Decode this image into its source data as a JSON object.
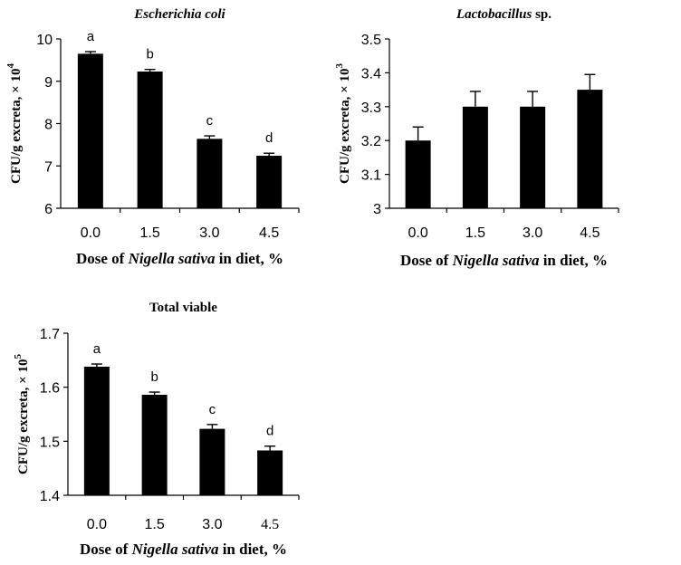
{
  "chart_data": [
    {
      "type": "bar",
      "title": {
        "italic": "Escherichia coli",
        "rest": ""
      },
      "ylabel": "CFU/g excreta, × 10",
      "ylabel_exp": "4",
      "xlabel": {
        "before": "Dose of ",
        "italic": "Nigella sativa",
        "after": " in diet, %"
      },
      "categories": [
        "0.0",
        "1.5",
        "3.0",
        "4.5"
      ],
      "values": [
        9.65,
        9.23,
        7.64,
        7.24
      ],
      "errors": [
        0.05,
        0.05,
        0.07,
        0.06
      ],
      "sig_letters": [
        "a",
        "b",
        "c",
        "d"
      ],
      "ylim": [
        6,
        10
      ],
      "yticks": [
        "6",
        "7",
        "8",
        "9",
        "10"
      ],
      "ytick_values": [
        6,
        7,
        8,
        9,
        10
      ]
    },
    {
      "type": "bar",
      "title": {
        "italic": "Lactobacillus",
        "rest": " sp."
      },
      "ylabel": "CFU/g excreta, × 10",
      "ylabel_exp": "3",
      "xlabel": {
        "before": "Dose of ",
        "italic": "Nigella sativa",
        "after": " in diet, %"
      },
      "categories": [
        "0.0",
        "1.5",
        "3.0",
        "4.5"
      ],
      "values": [
        3.2,
        3.3,
        3.3,
        3.35
      ],
      "errors": [
        0.04,
        0.045,
        0.045,
        0.045
      ],
      "sig_letters": [],
      "ylim": [
        3,
        3.5
      ],
      "yticks": [
        "3",
        "3.1",
        "3.2",
        "3.3",
        "3.4",
        "3.5"
      ],
      "ytick_values": [
        3,
        3.1,
        3.2,
        3.3,
        3.4,
        3.5
      ]
    },
    {
      "type": "bar",
      "title": {
        "italic": "",
        "rest": "Total viable"
      },
      "ylabel": "CFU/g excreta, × 10",
      "ylabel_exp": "5",
      "xlabel": {
        "before": "Dose of ",
        "italic": "Nigella sativa",
        "after": " in diet, %"
      },
      "categories": [
        "0.0",
        "1.5",
        "3.0",
        "4.5"
      ],
      "values": [
        1.638,
        1.586,
        1.523,
        1.483
      ],
      "errors": [
        0.005,
        0.005,
        0.008,
        0.008
      ],
      "sig_letters": [
        "a",
        "b",
        "c",
        "d"
      ],
      "ylim": [
        1.4,
        1.7
      ],
      "yticks": [
        "1.4",
        "1.5",
        "1.6",
        "1.7"
      ],
      "ytick_values": [
        1.4,
        1.5,
        1.6,
        1.7
      ]
    }
  ]
}
